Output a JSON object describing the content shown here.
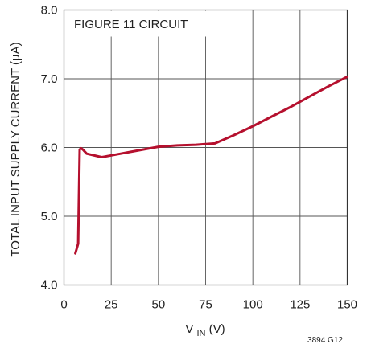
{
  "chart_data": {
    "type": "line",
    "annotation": "FIGURE 11 CIRCUIT",
    "xlabel_main": "V",
    "xlabel_sub": "IN",
    "xlabel_unit": " (V)",
    "ylabel": "TOTAL INPUT SUPPLY CURRENT (µA)",
    "x_ticks": [
      "0",
      "25",
      "50",
      "75",
      "100",
      "125",
      "150"
    ],
    "y_ticks": [
      "4.0",
      "5.0",
      "6.0",
      "7.0",
      "8.0"
    ],
    "xlim": [
      0,
      150
    ],
    "ylim": [
      4.0,
      8.0
    ],
    "grid": true,
    "series_color": "#b5102e",
    "series": [
      {
        "x": [
          6,
          7.5,
          8.3,
          9,
          10,
          12,
          20,
          30,
          40,
          50,
          60,
          70,
          80,
          90,
          100,
          110,
          120,
          130,
          140,
          150
        ],
        "y": [
          4.46,
          4.6,
          5.97,
          5.99,
          5.97,
          5.91,
          5.86,
          5.91,
          5.96,
          6.01,
          6.03,
          6.04,
          6.06,
          6.18,
          6.31,
          6.45,
          6.59,
          6.74,
          6.89,
          7.03
        ]
      }
    ],
    "footnote": "3894 G12"
  }
}
